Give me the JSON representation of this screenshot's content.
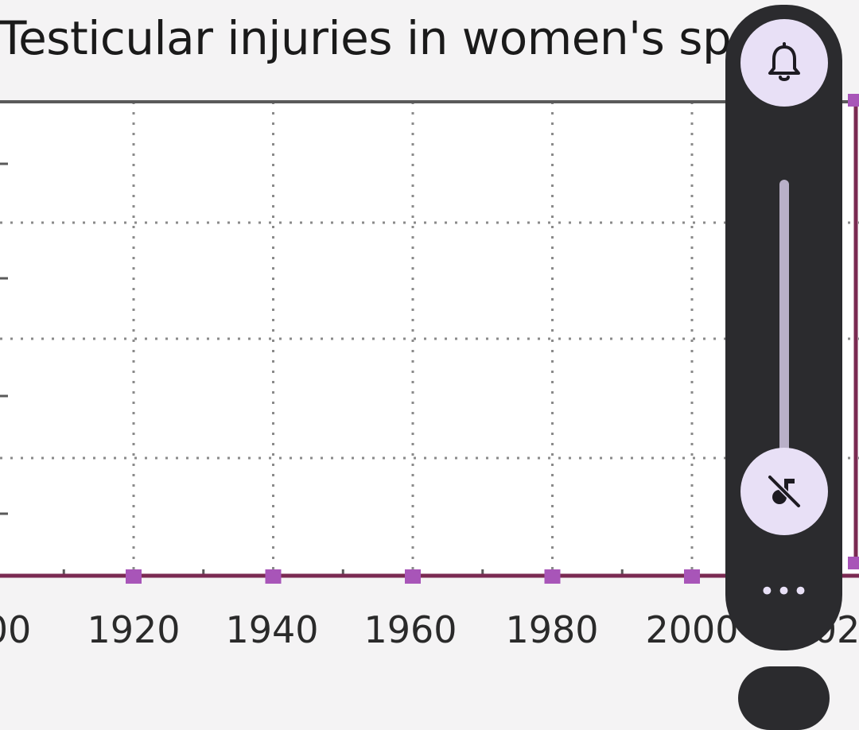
{
  "page": {
    "title": "Testicular injuries in women's sp"
  },
  "chart_data": {
    "type": "line",
    "title": "Testicular injuries in women's sp",
    "x": [
      1920,
      1940,
      1960,
      1980,
      2000
    ],
    "series": [
      {
        "values": [
          0,
          0,
          0,
          0,
          0
        ]
      }
    ],
    "x_tick_labels": [
      "00",
      "1920",
      "1940",
      "1960",
      "1980",
      "2000",
      "02"
    ],
    "xlim": [
      1900,
      2020
    ],
    "grid": true,
    "colors": {
      "line": "#7a2a52",
      "marker": "#a855b8",
      "grid": "#8a8a8a",
      "frame": "#5a5a5a"
    }
  },
  "volume_panel": {
    "bell_icon": "bell-icon",
    "mute_icon": "music-off-icon",
    "more_label": "•••",
    "level": 0,
    "colors": {
      "panel": "#2b2b2e",
      "button": "#e8e0f6",
      "track": "#b9b0c8"
    }
  }
}
